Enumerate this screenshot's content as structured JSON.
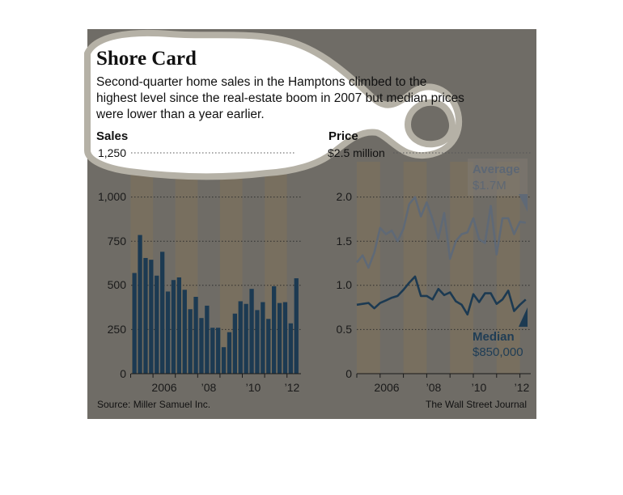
{
  "header": {
    "title": "Shore Card",
    "subtitle_lines": [
      "Second-quarter home sales in the Hamptons climbed to the",
      "highest level since the real-estate boom in 2007 but median prices",
      "were lower than a year earlier."
    ]
  },
  "footer": {
    "source": "Source: Miller Samuel Inc.",
    "credit": "The Wall Street Journal"
  },
  "colors": {
    "panel": "#6f6c66",
    "shade": "#786f5f",
    "bar": "#1c3a52",
    "average_line": "#5f6976",
    "median_line": "#1c3a52",
    "blob_fill": "#ffffff",
    "blob_outline": "#b5b1a6"
  },
  "chart_data": [
    {
      "type": "bar",
      "title": "Sales",
      "x_tick_labels": [
        "2006",
        "’08",
        "’10",
        "’12"
      ],
      "y_tick_labels": [
        "1,250",
        "1,000",
        "750",
        "500",
        "250",
        "0"
      ],
      "ylim": [
        0,
        1250
      ],
      "series": [
        {
          "values": [
            570,
            785,
            655,
            645,
            555,
            690,
            465,
            530,
            545,
            475,
            365,
            435,
            315,
            385,
            260,
            260,
            150,
            235,
            340,
            410,
            395,
            480,
            360,
            405,
            310,
            495,
            400,
            405,
            285,
            540
          ]
        }
      ]
    },
    {
      "type": "line",
      "title": "Price",
      "x_tick_labels": [
        "2006",
        "’08",
        "’10",
        "’12"
      ],
      "y_tick_labels": [
        "$2.5 million",
        "2.0",
        "1.5",
        "1.0",
        "0.5",
        "0"
      ],
      "ylim": [
        0,
        2.5
      ],
      "annotations": [
        {
          "series": "Average",
          "value": "$1.7M"
        },
        {
          "series": "Median",
          "value": "$850,000"
        }
      ],
      "series": [
        {
          "name": "Average",
          "values": [
            1.26,
            1.34,
            1.2,
            1.37,
            1.65,
            1.58,
            1.62,
            1.5,
            1.64,
            1.92,
            2.0,
            1.78,
            1.94,
            1.75,
            1.53,
            1.82,
            1.3,
            1.5,
            1.58,
            1.6,
            1.76,
            1.52,
            1.48,
            1.9,
            1.35,
            1.76,
            1.76,
            1.58,
            1.72,
            1.71
          ]
        },
        {
          "name": "Median",
          "values": [
            0.78,
            0.79,
            0.8,
            0.74,
            0.8,
            0.83,
            0.86,
            0.88,
            0.95,
            1.03,
            1.1,
            0.88,
            0.88,
            0.84,
            0.96,
            0.89,
            0.92,
            0.82,
            0.78,
            0.67,
            0.9,
            0.81,
            0.91,
            0.91,
            0.79,
            0.84,
            0.94,
            0.71,
            0.78,
            0.84
          ]
        }
      ]
    }
  ]
}
